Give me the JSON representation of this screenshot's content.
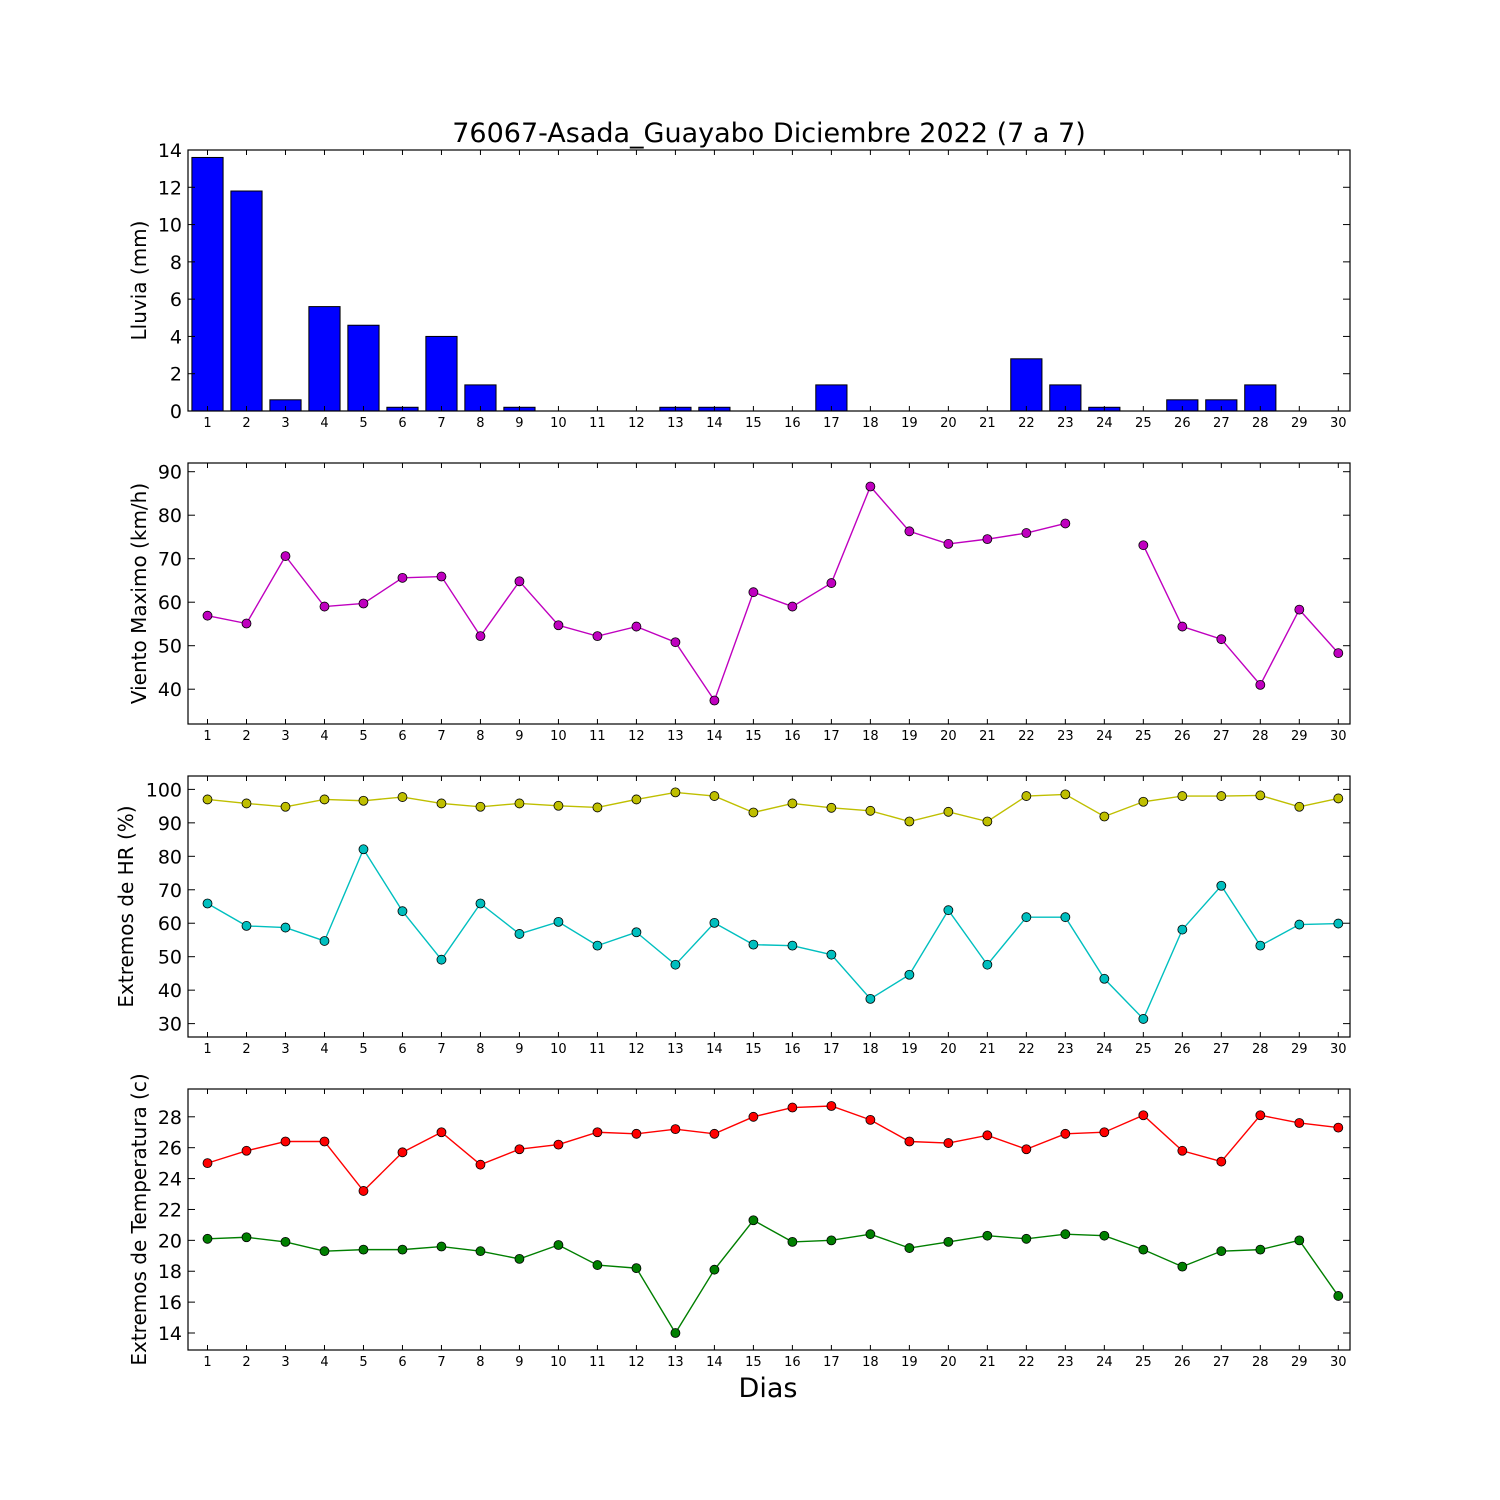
{
  "chart_data": [
    {
      "type": "bar",
      "title": "76067-Asada_Guayabo Diciembre 2022  (7 a 7)",
      "ylabel": "Lluvia (mm)",
      "xlabel": "",
      "ylim": [
        0,
        14
      ],
      "yticks": [
        0,
        2,
        4,
        6,
        8,
        10,
        12,
        14
      ],
      "categories": [
        "1",
        "2",
        "3",
        "4",
        "5",
        "6",
        "7",
        "8",
        "9",
        "10",
        "11",
        "12",
        "13",
        "14",
        "15",
        "16",
        "17",
        "18",
        "19",
        "20",
        "21",
        "22",
        "23",
        "24",
        "25",
        "26",
        "27",
        "28",
        "29",
        "30"
      ],
      "series": [
        {
          "color": "#0000ff",
          "values": [
            13.6,
            11.8,
            0.6,
            5.6,
            4.6,
            0.2,
            4.0,
            1.4,
            0.2,
            0,
            0,
            0,
            0.2,
            0.2,
            0,
            0,
            1.4,
            0,
            0,
            0,
            0,
            2.8,
            1.4,
            0.2,
            0,
            0.6,
            0.6,
            1.4,
            0,
            0
          ]
        }
      ]
    },
    {
      "type": "line",
      "title": "",
      "ylabel": "Viento Maximo (km/h)",
      "xlabel": "",
      "ylim": [
        32,
        92
      ],
      "yticks": [
        40,
        50,
        60,
        70,
        80,
        90
      ],
      "categories": [
        "1",
        "2",
        "3",
        "4",
        "5",
        "6",
        "7",
        "8",
        "9",
        "10",
        "11",
        "12",
        "13",
        "14",
        "15",
        "16",
        "17",
        "18",
        "19",
        "20",
        "21",
        "22",
        "23",
        "24",
        "25",
        "26",
        "27",
        "28",
        "29",
        "30"
      ],
      "series": [
        {
          "color": "#bf00bf",
          "values": [
            56.9,
            55.1,
            70.6,
            59.0,
            59.7,
            65.6,
            65.9,
            52.2,
            64.8,
            54.7,
            52.2,
            54.4,
            50.8,
            37.4,
            62.3,
            59.0,
            64.4,
            86.6,
            76.3,
            73.4,
            74.5,
            75.9,
            78.1,
            null,
            73.1,
            54.4,
            51.5,
            41.0,
            58.3,
            48.3
          ]
        }
      ]
    },
    {
      "type": "line",
      "title": "",
      "ylabel": "Extremos de HR (%)",
      "xlabel": "",
      "ylim": [
        26,
        104
      ],
      "yticks": [
        30,
        40,
        50,
        60,
        70,
        80,
        90,
        100
      ],
      "categories": [
        "1",
        "2",
        "3",
        "4",
        "5",
        "6",
        "7",
        "8",
        "9",
        "10",
        "11",
        "12",
        "13",
        "14",
        "15",
        "16",
        "17",
        "18",
        "19",
        "20",
        "21",
        "22",
        "23",
        "24",
        "25",
        "26",
        "27",
        "28",
        "29",
        "30"
      ],
      "series": [
        {
          "color": "#bfbf00",
          "values": [
            97.0,
            95.8,
            94.8,
            97.0,
            96.6,
            97.7,
            95.8,
            94.8,
            95.8,
            95.1,
            94.6,
            97.0,
            99.1,
            98.0,
            93.1,
            95.8,
            94.5,
            93.6,
            90.4,
            93.3,
            90.4,
            98.0,
            98.5,
            91.9,
            96.3,
            98.0,
            98.0,
            98.2,
            94.8,
            97.3
          ]
        },
        {
          "color": "#00bfbf",
          "values": [
            65.9,
            59.2,
            58.7,
            54.7,
            82.1,
            63.6,
            49.1,
            65.9,
            56.8,
            60.4,
            53.3,
            57.3,
            47.6,
            60.1,
            53.6,
            53.3,
            50.6,
            37.4,
            44.6,
            63.9,
            47.6,
            61.8,
            61.8,
            43.4,
            31.4,
            58.1,
            71.2,
            53.3,
            59.6,
            59.9
          ]
        }
      ]
    },
    {
      "type": "line",
      "title": "",
      "ylabel": "Extremos de Temperatura (c)",
      "xlabel": "Dias",
      "ylim": [
        12.9,
        29.8
      ],
      "yticks": [
        14,
        16,
        18,
        20,
        22,
        24,
        26,
        28
      ],
      "categories": [
        "1",
        "2",
        "3",
        "4",
        "5",
        "6",
        "7",
        "8",
        "9",
        "10",
        "11",
        "12",
        "13",
        "14",
        "15",
        "16",
        "17",
        "18",
        "19",
        "20",
        "21",
        "22",
        "23",
        "24",
        "25",
        "26",
        "27",
        "28",
        "29",
        "30"
      ],
      "series": [
        {
          "color": "#ff0000",
          "values": [
            25.0,
            25.8,
            26.4,
            26.4,
            23.2,
            25.7,
            27.0,
            24.9,
            25.9,
            26.2,
            27.0,
            26.9,
            27.2,
            26.9,
            28.0,
            28.6,
            28.7,
            27.8,
            26.4,
            26.3,
            26.8,
            25.9,
            26.9,
            27.0,
            28.1,
            25.8,
            25.1,
            28.1,
            27.6,
            27.3
          ]
        },
        {
          "color": "#007f00",
          "values": [
            20.1,
            20.2,
            19.9,
            19.3,
            19.4,
            19.4,
            19.6,
            19.3,
            18.8,
            19.7,
            18.4,
            18.2,
            14.0,
            18.1,
            21.3,
            19.9,
            20.0,
            20.4,
            19.5,
            19.9,
            20.3,
            20.1,
            20.4,
            20.3,
            19.4,
            18.3,
            19.3,
            19.4,
            20.0,
            16.4
          ]
        }
      ]
    }
  ]
}
